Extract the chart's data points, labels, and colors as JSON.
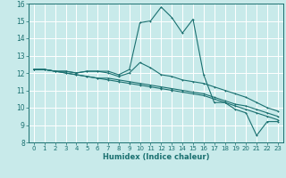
{
  "xlabel": "Humidex (Indice chaleur)",
  "bg_color": "#c8eaea",
  "grid_color": "#ffffff",
  "line_color": "#1a7070",
  "xlim": [
    -0.5,
    23.5
  ],
  "ylim": [
    8,
    16
  ],
  "xticks": [
    0,
    1,
    2,
    3,
    4,
    5,
    6,
    7,
    8,
    9,
    10,
    11,
    12,
    13,
    14,
    15,
    16,
    17,
    18,
    19,
    20,
    21,
    22,
    23
  ],
  "yticks": [
    8,
    9,
    10,
    11,
    12,
    13,
    14,
    15,
    16
  ],
  "line1_x": [
    0,
    1,
    2,
    3,
    4,
    5,
    6,
    7,
    8,
    9,
    10,
    11,
    12,
    13,
    14,
    15,
    16,
    17,
    18,
    19,
    20,
    21,
    22,
    23
  ],
  "line1_y": [
    12.2,
    12.2,
    12.1,
    12.1,
    12.0,
    12.1,
    12.1,
    12.1,
    11.9,
    12.2,
    14.9,
    15.0,
    15.8,
    15.2,
    14.3,
    15.1,
    11.9,
    10.3,
    10.3,
    9.9,
    9.7,
    8.4,
    9.2,
    9.2
  ],
  "line2_x": [
    0,
    1,
    2,
    3,
    4,
    5,
    6,
    7,
    8,
    9,
    10,
    11,
    12,
    13,
    14,
    15,
    16,
    17,
    18,
    19,
    20,
    21,
    22,
    23
  ],
  "line2_y": [
    12.2,
    12.2,
    12.1,
    12.1,
    12.0,
    12.1,
    12.1,
    12.0,
    11.8,
    12.0,
    12.6,
    12.3,
    11.9,
    11.8,
    11.6,
    11.5,
    11.4,
    11.2,
    11.0,
    10.8,
    10.6,
    10.3,
    10.0,
    9.8
  ],
  "line3_x": [
    0,
    1,
    2,
    3,
    4,
    5,
    6,
    7,
    8,
    9,
    10,
    11,
    12,
    13,
    14,
    15,
    16,
    17,
    18,
    19,
    20,
    21,
    22,
    23
  ],
  "line3_y": [
    12.2,
    12.2,
    12.1,
    12.0,
    11.9,
    11.8,
    11.7,
    11.7,
    11.6,
    11.5,
    11.4,
    11.3,
    11.2,
    11.1,
    11.0,
    10.9,
    10.8,
    10.6,
    10.4,
    10.2,
    10.1,
    9.9,
    9.7,
    9.5
  ],
  "line4_x": [
    0,
    1,
    2,
    3,
    4,
    5,
    6,
    7,
    8,
    9,
    10,
    11,
    12,
    13,
    14,
    15,
    16,
    17,
    18,
    19,
    20,
    21,
    22,
    23
  ],
  "line4_y": [
    12.2,
    12.2,
    12.1,
    12.0,
    11.9,
    11.8,
    11.7,
    11.6,
    11.5,
    11.4,
    11.3,
    11.2,
    11.1,
    11.0,
    10.9,
    10.8,
    10.7,
    10.5,
    10.3,
    10.1,
    9.9,
    9.7,
    9.5,
    9.3
  ]
}
